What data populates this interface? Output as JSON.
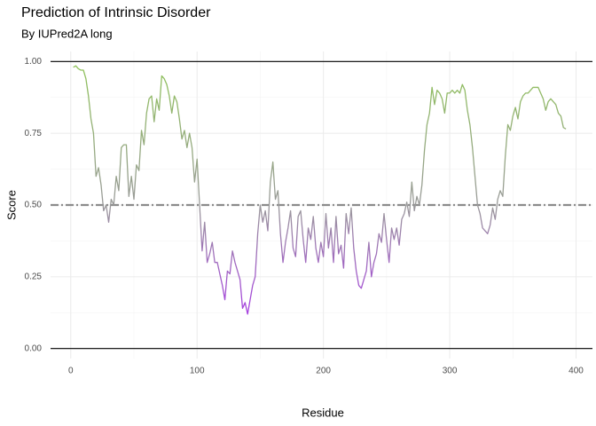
{
  "chart_data": {
    "type": "line",
    "title": "Prediction of Intrinsic Disorder",
    "subtitle": "By IUPred2A long",
    "x_label": "Residue",
    "y_label": "Score",
    "xlim": [
      -16,
      413
    ],
    "ylim": [
      -0.035,
      1.035
    ],
    "xticks": [
      0,
      100,
      200,
      300,
      400
    ],
    "yticks": [
      {
        "value": 0,
        "label": "0.00"
      },
      {
        "value": 0.25,
        "label": "0.25"
      },
      {
        "value": 0.5,
        "label": "0.50"
      },
      {
        "value": 0.75,
        "label": "0.75"
      },
      {
        "value": 1,
        "label": "1.00"
      }
    ],
    "grid": true,
    "minor_grid": true,
    "reference_lines": [
      0,
      1
    ],
    "threshold": 0.5,
    "color_scale": {
      "low": "#a63fe0",
      "mid": "#9a9a9a",
      "high": "#8fc25a"
    },
    "x": [
      2,
      4,
      6,
      8,
      10,
      12,
      14,
      16,
      18,
      20,
      22,
      24,
      26,
      28,
      30,
      32,
      34,
      36,
      38,
      40,
      42,
      44,
      46,
      48,
      50,
      52,
      54,
      56,
      58,
      60,
      62,
      64,
      66,
      68,
      70,
      72,
      74,
      76,
      78,
      80,
      82,
      84,
      86,
      88,
      90,
      92,
      94,
      96,
      98,
      100,
      102,
      104,
      106,
      108,
      110,
      112,
      114,
      116,
      118,
      120,
      122,
      124,
      126,
      128,
      130,
      132,
      134,
      136,
      138,
      140,
      142,
      144,
      146,
      148,
      150,
      152,
      154,
      156,
      158,
      160,
      162,
      164,
      166,
      168,
      170,
      172,
      174,
      176,
      178,
      180,
      182,
      184,
      186,
      188,
      190,
      192,
      194,
      196,
      198,
      200,
      202,
      204,
      206,
      208,
      210,
      212,
      214,
      216,
      218,
      220,
      222,
      224,
      226,
      228,
      230,
      232,
      234,
      236,
      238,
      240,
      242,
      244,
      246,
      248,
      250,
      252,
      254,
      256,
      258,
      260,
      262,
      264,
      266,
      268,
      270,
      272,
      274,
      276,
      278,
      280,
      282,
      284,
      286,
      288,
      290,
      292,
      294,
      296,
      298,
      300,
      302,
      304,
      306,
      308,
      310,
      312,
      314,
      316,
      318,
      320,
      322,
      324,
      326,
      328,
      330,
      332,
      334,
      336,
      338,
      340,
      342,
      344,
      346,
      348,
      350,
      352,
      354,
      356,
      358,
      360,
      362,
      364,
      366,
      368,
      370,
      372,
      374,
      376,
      378,
      380,
      382,
      384,
      386,
      388,
      390,
      392
    ],
    "values": [
      0.98,
      0.985,
      0.975,
      0.97,
      0.97,
      0.94,
      0.88,
      0.8,
      0.75,
      0.6,
      0.63,
      0.57,
      0.48,
      0.5,
      0.44,
      0.52,
      0.5,
      0.6,
      0.55,
      0.7,
      0.71,
      0.71,
      0.53,
      0.6,
      0.52,
      0.64,
      0.62,
      0.76,
      0.71,
      0.82,
      0.87,
      0.88,
      0.79,
      0.87,
      0.83,
      0.95,
      0.94,
      0.92,
      0.88,
      0.82,
      0.88,
      0.86,
      0.8,
      0.73,
      0.76,
      0.7,
      0.75,
      0.7,
      0.58,
      0.66,
      0.5,
      0.34,
      0.44,
      0.3,
      0.33,
      0.37,
      0.3,
      0.3,
      0.26,
      0.22,
      0.17,
      0.27,
      0.26,
      0.34,
      0.3,
      0.27,
      0.24,
      0.14,
      0.16,
      0.12,
      0.17,
      0.22,
      0.25,
      0.4,
      0.5,
      0.44,
      0.48,
      0.41,
      0.58,
      0.65,
      0.52,
      0.55,
      0.4,
      0.3,
      0.37,
      0.42,
      0.48,
      0.35,
      0.32,
      0.46,
      0.48,
      0.38,
      0.3,
      0.42,
      0.38,
      0.46,
      0.35,
      0.3,
      0.37,
      0.32,
      0.47,
      0.35,
      0.42,
      0.3,
      0.46,
      0.33,
      0.36,
      0.28,
      0.47,
      0.4,
      0.49,
      0.35,
      0.27,
      0.22,
      0.21,
      0.24,
      0.27,
      0.37,
      0.25,
      0.3,
      0.33,
      0.4,
      0.37,
      0.47,
      0.38,
      0.3,
      0.42,
      0.38,
      0.42,
      0.36,
      0.45,
      0.47,
      0.51,
      0.46,
      0.58,
      0.48,
      0.53,
      0.5,
      0.57,
      0.69,
      0.78,
      0.82,
      0.91,
      0.85,
      0.9,
      0.89,
      0.87,
      0.82,
      0.89,
      0.89,
      0.9,
      0.89,
      0.9,
      0.89,
      0.92,
      0.9,
      0.83,
      0.78,
      0.7,
      0.6,
      0.5,
      0.47,
      0.42,
      0.41,
      0.4,
      0.43,
      0.49,
      0.45,
      0.52,
      0.55,
      0.53,
      0.67,
      0.78,
      0.76,
      0.81,
      0.84,
      0.8,
      0.86,
      0.88,
      0.89,
      0.89,
      0.9,
      0.91,
      0.91,
      0.91,
      0.89,
      0.87,
      0.83,
      0.86,
      0.87,
      0.86,
      0.85,
      0.82,
      0.81,
      0.77,
      0.765
    ]
  }
}
